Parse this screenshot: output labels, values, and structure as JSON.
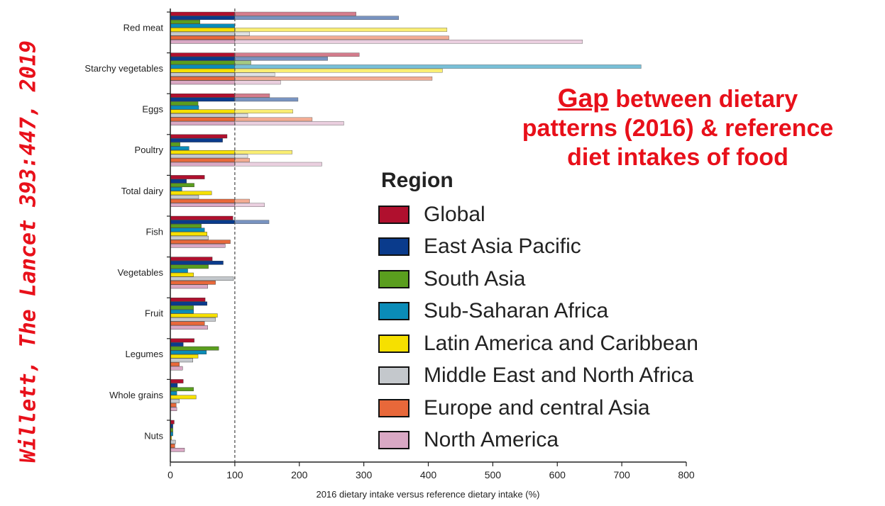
{
  "citation": "Willett, The Lancet 393:447, 2019",
  "annotation": {
    "gap_word": "Gap",
    "line1_rest": " between dietary",
    "line2": "patterns (2016) & reference",
    "line3": "diet intakes of food"
  },
  "colors": {
    "Global": "#b0102e",
    "East Asia Pacific": "#0a3b8c",
    "South Asia": "#5a9e1e",
    "Sub-Saharan Africa": "#0a8cb8",
    "Latin America and Caribbean": "#f6e000",
    "Middle East and North Africa": "#c4c8cc",
    "Europe and central  Asia": "#e8683a",
    "North America": "#d9a8c4"
  },
  "chart_data": {
    "type": "bar",
    "orientation": "horizontal",
    "title": "",
    "xlabel": "2016 dietary intake versus reference dietary intake (%)",
    "ylabel": "",
    "xlim": [
      0,
      800
    ],
    "xticks": [
      0,
      100,
      200,
      300,
      400,
      500,
      600,
      700,
      800
    ],
    "reference_line": 100,
    "legend_title": "Region",
    "legend_position": "right",
    "categories": [
      "Red meat",
      "Starchy vegetables",
      "Eggs",
      "Poultry",
      "Total dairy",
      "Fish",
      "Vegetables",
      "Fruit",
      "Legumes",
      "Whole grains",
      "Nuts"
    ],
    "series": [
      {
        "name": "Global",
        "values": [
          288,
          293,
          154,
          88,
          53,
          97,
          65,
          54,
          37,
          20,
          6
        ]
      },
      {
        "name": "East Asia Pacific",
        "values": [
          354,
          244,
          198,
          81,
          25,
          153,
          82,
          57,
          20,
          11,
          4
        ]
      },
      {
        "name": "South Asia",
        "values": [
          46,
          125,
          43,
          15,
          37,
          48,
          59,
          36,
          75,
          36,
          4
        ]
      },
      {
        "name": "Sub-Saharan Africa",
        "values": [
          100,
          730,
          44,
          29,
          18,
          53,
          27,
          36,
          56,
          10,
          4
        ]
      },
      {
        "name": "Latin America and Caribbean",
        "values": [
          429,
          422,
          190,
          189,
          64,
          57,
          36,
          73,
          43,
          40,
          2
        ]
      },
      {
        "name": "Middle East and North Africa",
        "values": [
          123,
          162,
          120,
          120,
          44,
          59,
          98,
          70,
          35,
          14,
          8
        ]
      },
      {
        "name": "Europe and central  Asia",
        "values": [
          432,
          406,
          220,
          123,
          123,
          93,
          70,
          53,
          14,
          9,
          7
        ]
      },
      {
        "name": "North America",
        "values": [
          639,
          171,
          269,
          235,
          146,
          85,
          58,
          58,
          19,
          10,
          22
        ]
      }
    ]
  }
}
